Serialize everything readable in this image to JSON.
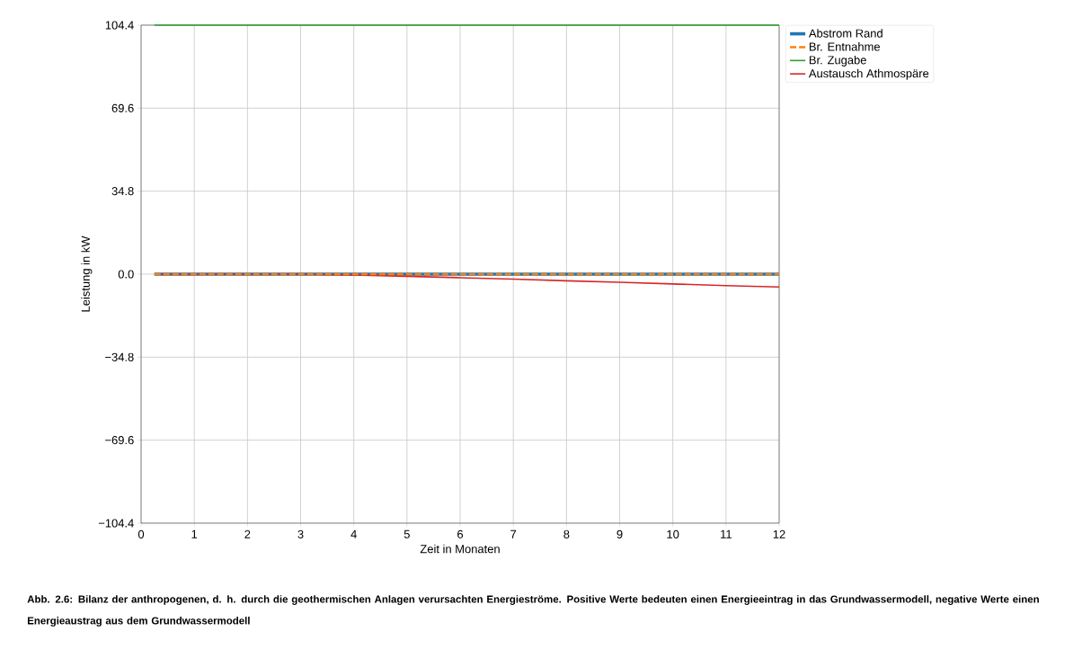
{
  "chart_data": {
    "type": "line",
    "xlabel": "Zeit in Monaten",
    "ylabel": "Leistung in kW",
    "x": [
      0.25,
      12
    ],
    "series": [
      {
        "name": "Abstrom Rand",
        "color": "#1f77b4",
        "values": [
          0,
          0
        ]
      },
      {
        "name": "Br. Entnahme",
        "color": "#ff7f0e",
        "values": [
          0,
          0
        ],
        "line_style": "dashed"
      },
      {
        "name": "Br. Zugabe",
        "color": "#2ca02c",
        "values": [
          104.4,
          104.4
        ]
      },
      {
        "name": "Austausch Athmospäre",
        "color": "#d62728",
        "x": [
          0.25,
          3,
          4,
          5,
          6,
          7,
          8,
          9,
          10,
          11,
          12
        ],
        "values": [
          0,
          0,
          -0.4,
          -0.9,
          -1.5,
          -2.1,
          -2.8,
          -3.4,
          -4.1,
          -4.8,
          -5.4
        ]
      }
    ],
    "xlim": [
      0,
      12
    ],
    "ylim": [
      -104.4,
      104.4
    ],
    "xticks": [
      0,
      1,
      2,
      3,
      4,
      5,
      6,
      7,
      8,
      9,
      10,
      11,
      12
    ],
    "yticks": [
      {
        "value": -104.4,
        "label": "−104.4"
      },
      {
        "value": -69.6,
        "label": "−69.6"
      },
      {
        "value": -34.8,
        "label": "−34.8"
      },
      {
        "value": 0,
        "label": "0.0"
      },
      {
        "value": 34.8,
        "label": "34.8"
      },
      {
        "value": 69.6,
        "label": "69.6"
      },
      {
        "value": 104.4,
        "label": "104.4"
      }
    ],
    "grid": true,
    "legend": "right",
    "annotations": [
      "Abb. 2.6: Bilanz der anthropogenen, d. h. durch die geothermischen Anlagen verursachten Energieströme. Positive Werte bedeuten einen Energieeintrag in das Grundwassermodell, negative Werte einen Energieaustrag aus dem Grundwassermodell"
    ]
  }
}
